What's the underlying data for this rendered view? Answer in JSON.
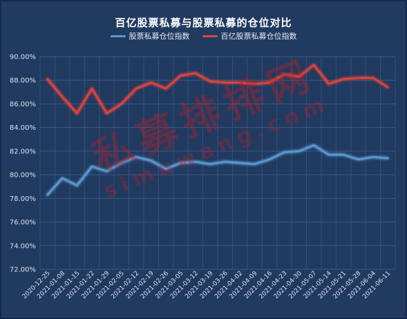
{
  "chart_data": {
    "type": "line",
    "title": "百亿股票私募与股票私募的仓位对比",
    "x": [
      "2020-12-25",
      "2021-01-08",
      "2021-01-15",
      "2021-01-22",
      "2021-01-29",
      "2021-02-05",
      "2021-02-12",
      "2021-02-19",
      "2021-02-26",
      "2021-03-05",
      "2021-03-12",
      "2021-03-19",
      "2021-03-26",
      "2021-04-02",
      "2021-04-09",
      "2021-04-16",
      "2021-04-23",
      "2021-04-30",
      "2021-05-07",
      "2021-05-14",
      "2021-05-21",
      "2021-05-28",
      "2021-06-04",
      "2021-06-11"
    ],
    "series": [
      {
        "name": "股票私募仓位指数",
        "color": "#5b9bd5",
        "values": [
          78.3,
          79.7,
          79.1,
          80.7,
          80.3,
          81.0,
          81.5,
          81.2,
          80.5,
          81.0,
          81.1,
          80.9,
          81.1,
          81.0,
          80.9,
          81.3,
          81.9,
          82.0,
          82.5,
          81.7,
          81.7,
          81.3,
          81.5,
          81.4
        ]
      },
      {
        "name": "百亿股票私募仓位指数",
        "color": "#e0453c",
        "values": [
          88.1,
          86.6,
          85.2,
          87.3,
          85.2,
          86.0,
          87.3,
          87.8,
          87.3,
          88.4,
          88.6,
          87.9,
          87.8,
          87.8,
          87.7,
          87.8,
          88.5,
          88.3,
          89.3,
          87.7,
          88.1,
          88.2,
          88.2,
          87.4
        ]
      }
    ],
    "y_tick_labels": [
      "90.00%",
      "88.00%",
      "86.00%",
      "84.00%",
      "82.00%",
      "80.00%",
      "78.00%",
      "76.00%",
      "74.00%",
      "72.00%"
    ],
    "ylim": [
      72,
      90
    ],
    "grid": true,
    "legend_position": "top"
  },
  "watermark": {
    "cn": "私募排排网",
    "en": "simuwang.com"
  }
}
